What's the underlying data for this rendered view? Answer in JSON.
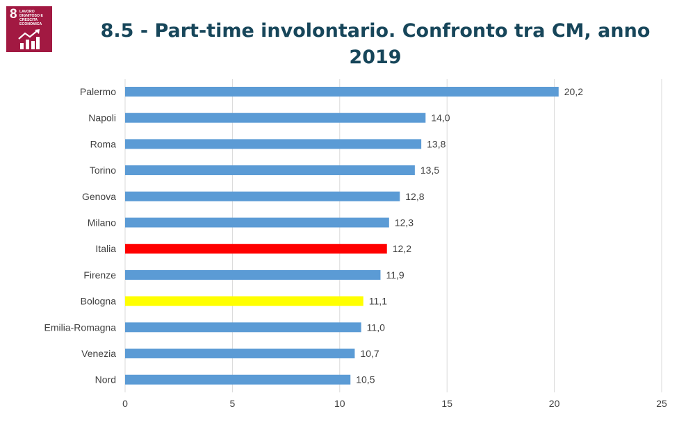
{
  "badge": {
    "number": "8",
    "text": "LAVORO DIGNITOSO E CRESCITA ECONOMICA",
    "color": "#a21942",
    "icon": "growth-chart-icon"
  },
  "title": "8.5 - Part-time involontario. Confronto tra CM, anno 2019",
  "chart_data": {
    "type": "bar",
    "orientation": "horizontal",
    "categories": [
      "Palermo",
      "Napoli",
      "Roma",
      "Torino",
      "Genova",
      "Milano",
      "Italia",
      "Firenze",
      "Bologna",
      "Emilia-Romagna",
      "Venezia",
      "Nord"
    ],
    "values": [
      20.2,
      14.0,
      13.8,
      13.5,
      12.8,
      12.3,
      12.2,
      11.9,
      11.1,
      11.0,
      10.7,
      10.5
    ],
    "value_labels": [
      "20,2",
      "14,0",
      "13,8",
      "13,5",
      "12,8",
      "12,3",
      "12,2",
      "11,9",
      "11,1",
      "11,0",
      "10,7",
      "10,5"
    ],
    "colors": [
      "#5b9bd5",
      "#5b9bd5",
      "#5b9bd5",
      "#5b9bd5",
      "#5b9bd5",
      "#5b9bd5",
      "#ff0000",
      "#5b9bd5",
      "#ffff00",
      "#5b9bd5",
      "#5b9bd5",
      "#5b9bd5"
    ],
    "xlim": [
      0,
      25
    ],
    "xticks": [
      0,
      5,
      10,
      15,
      20,
      25
    ],
    "xtick_labels": [
      "0",
      "5",
      "10",
      "15",
      "20",
      "25"
    ],
    "grid": "vertical",
    "legend": "none"
  }
}
